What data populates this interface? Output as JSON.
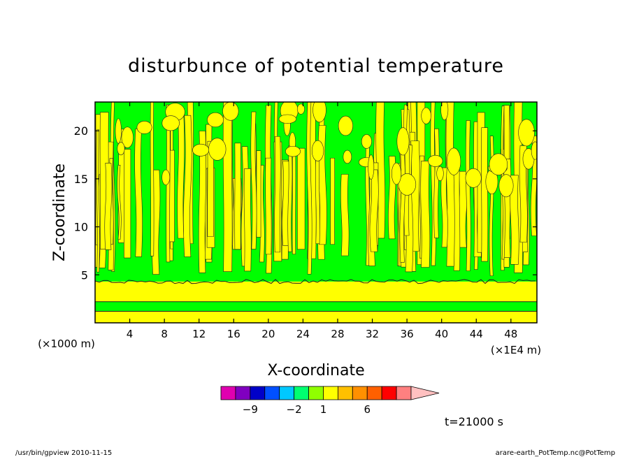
{
  "chart_data": {
    "type": "heatmap",
    "title": "disturbunce of potential temperature",
    "xlabel": "X-coordinate",
    "ylabel": "Z-coordinate",
    "x_unit_left": "(×1000 m)",
    "x_unit_right": "(×1E4 m)",
    "xlim": [
      0,
      51
    ],
    "ylim": [
      0,
      23
    ],
    "x_ticks": [
      4,
      8,
      12,
      16,
      20,
      24,
      28,
      32,
      36,
      40,
      44,
      48
    ],
    "y_ticks": [
      5,
      10,
      15,
      20
    ],
    "layers": [
      {
        "from": 0,
        "to": 1.2,
        "color": "#ffff00"
      },
      {
        "from": 1.2,
        "to": 2.2,
        "color": "#00ff00"
      },
      {
        "from": 2.2,
        "to": 4.3,
        "color": "#ffff00"
      },
      {
        "from": 4.3,
        "to": 23,
        "color": "#00ff00",
        "note_pattern": "yellow vertical filaments"
      }
    ],
    "colorbar": {
      "colors": [
        "#e000b0",
        "#8000c0",
        "#0000c8",
        "#0050ff",
        "#00c8ff",
        "#00ff70",
        "#90ff00",
        "#ffff00",
        "#ffc000",
        "#ff9000",
        "#ff6000",
        "#ff0000",
        "#ff8080",
        "#ffc0c0"
      ],
      "labels": [
        {
          "text": "−9",
          "index": 1
        },
        {
          "text": "−2",
          "index": 4
        },
        {
          "text": "1",
          "index": 6
        },
        {
          "text": "6",
          "index": 9
        }
      ]
    },
    "time_label": "t=21000 s"
  },
  "footer": {
    "left": "/usr/bin/gpview  2010-11-15",
    "right": "arare-earth_PotTemp.nc@PotTemp"
  }
}
